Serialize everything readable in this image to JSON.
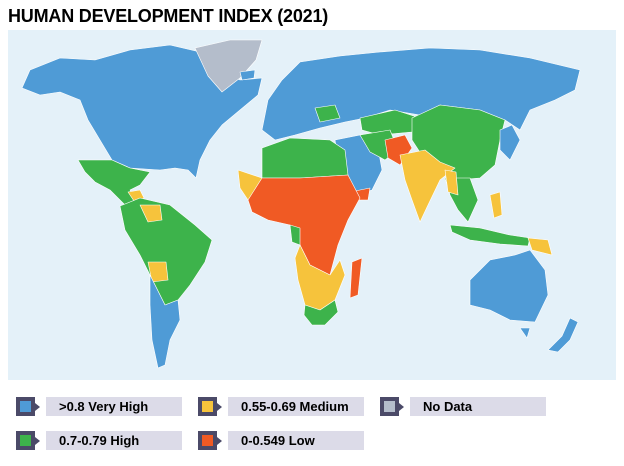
{
  "title": "HUMAN DEVELOPMENT INDEX (2021)",
  "colors": {
    "very_high": "#4f9bd6",
    "high": "#3db34b",
    "medium": "#f6c33c",
    "low": "#f05a24",
    "no_data": "#b4bdcb",
    "ocean": "#e4f1f9"
  },
  "legend": [
    {
      "label": ">0.8 Very High",
      "color": "#4f9bd6"
    },
    {
      "label": "0.55-0.69 Medium",
      "color": "#f6c33c"
    },
    {
      "label": "No Data",
      "color": "#b4bdcb"
    },
    {
      "label": "0.7-0.79 High",
      "color": "#3db34b"
    },
    {
      "label": "0-0.549 Low",
      "color": "#f05a24"
    }
  ]
}
